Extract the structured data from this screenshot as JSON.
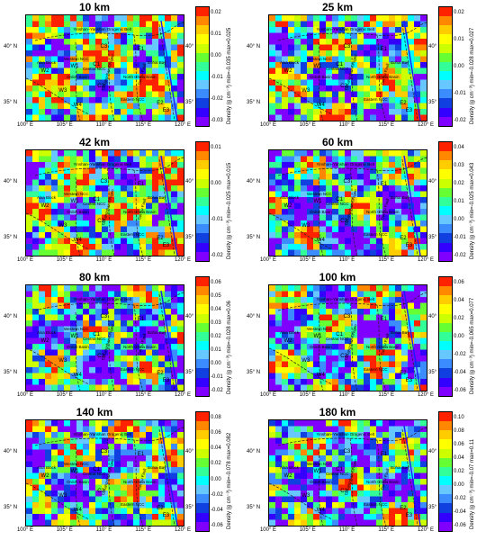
{
  "colors": [
    "#7f00ff",
    "#3300ff",
    "#1040e0",
    "#3a8cff",
    "#66c8ff",
    "#00ffff",
    "#33ff99",
    "#66ff33",
    "#ccff00",
    "#ffff00",
    "#ffcc00",
    "#ff8800",
    "#ff2200"
  ],
  "longitudes": [
    "100° E",
    "105° E",
    "110° E",
    "115° E",
    "120° E"
  ],
  "latitudes": [
    "40° N",
    "35° N"
  ],
  "place_labels": [
    "Yinshan–Yanshan Orogenic Belt",
    "Western NCC",
    "Central NCC",
    "North China Basin",
    "Eastern NCC",
    "Bohai Bay",
    "Alxa Block",
    "Ordos Basin",
    "Taihangshan Orogen",
    "Tan-Lu Fault"
  ],
  "zone_labels": [
    "W1",
    "W2",
    "W3",
    "W4",
    "C1",
    "C2",
    "C3",
    "E1",
    "E2",
    "E3"
  ],
  "panels": [
    {
      "title": "10 km",
      "ticks": [
        "0.02",
        "0.01",
        "0.00",
        "-0.01",
        "-0.02",
        "-0.03"
      ],
      "cb_label": "Density (g cm⁻³)  min=-0.035 max=0.025",
      "bias": 0.55
    },
    {
      "title": "25 km",
      "ticks": [
        "0.02",
        "0.01",
        "0.00",
        "-0.01",
        "-0.02"
      ],
      "cb_label": "Density (g cm⁻³)  min=-0.028 max=0.027",
      "bias": 0.45
    },
    {
      "title": "42 km",
      "ticks": [
        "0.01",
        "0.00",
        "-0.01",
        "-0.02"
      ],
      "cb_label": "Density (g cm⁻³)  min=-0.025 max=0.015",
      "bias": 0.5
    },
    {
      "title": "60 km",
      "ticks": [
        "0.04",
        "0.03",
        "0.02",
        "0.01",
        "0.00",
        "-0.01",
        "-0.02"
      ],
      "cb_label": "Density (g cm⁻³)  min=-0.025 max=0.043",
      "bias": 0.35
    },
    {
      "title": "80 km",
      "ticks": [
        "0.06",
        "0.05",
        "0.04",
        "0.03",
        "0.02",
        "0.01",
        "0.00",
        "-0.01",
        "-0.02"
      ],
      "cb_label": "Density (g cm⁻³)  min=-0.028 max=0.06",
      "bias": 0.35
    },
    {
      "title": "100 km",
      "ticks": [
        "0.06",
        "0.04",
        "0.02",
        "0.00",
        "-0.02",
        "-0.04",
        "-0.06"
      ],
      "cb_label": "Density (g cm⁻³)  min=-0.065 max=0.077",
      "bias": 0.4
    },
    {
      "title": "140 km",
      "ticks": [
        "0.08",
        "0.06",
        "0.04",
        "0.02",
        "0.00",
        "-0.02",
        "-0.04",
        "-0.06"
      ],
      "cb_label": "Density (g cm⁻³)  min=-0.078 max=0.082",
      "bias": 0.4
    },
    {
      "title": "180 km",
      "ticks": [
        "0.10",
        "0.08",
        "0.06",
        "0.04",
        "0.02",
        "0.00",
        "-0.02",
        "-0.04",
        "-0.06"
      ],
      "cb_label": "Density (g cm⁻³)  min=-0.07 max=0.11",
      "bias": 0.35
    }
  ]
}
